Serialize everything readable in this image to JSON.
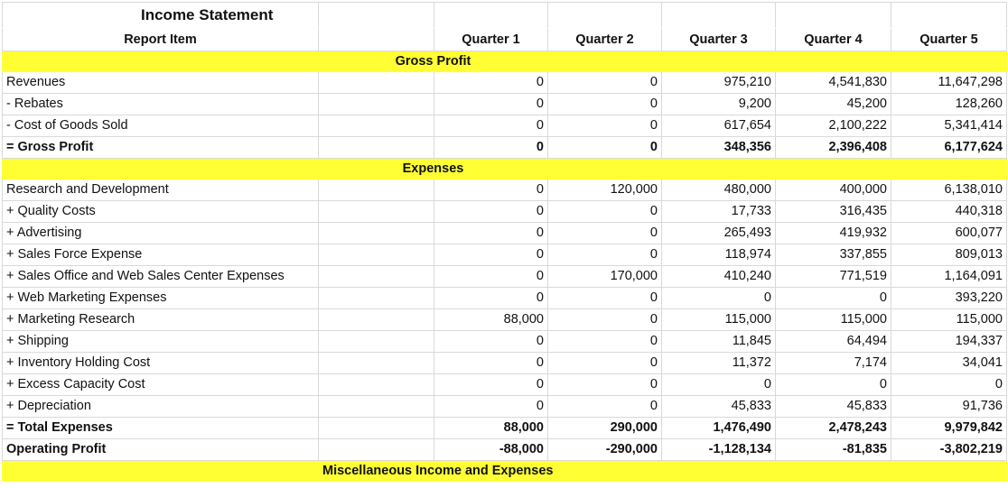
{
  "title": "Income Statement",
  "headers": {
    "report_item": "Report Item",
    "quarters": [
      "Quarter 1",
      "Quarter 2",
      "Quarter 3",
      "Quarter 4",
      "Quarter 5"
    ]
  },
  "sections": {
    "gross_profit": "Gross Profit",
    "expenses": "Expenses",
    "misc": "Miscellaneous Income and Expenses"
  },
  "gross_rows": [
    {
      "label": "Revenues",
      "q": [
        "0",
        "0",
        "975,210",
        "4,541,830",
        "11,647,298"
      ]
    },
    {
      "label": "- Rebates",
      "q": [
        "0",
        "0",
        "9,200",
        "45,200",
        "128,260"
      ]
    },
    {
      "label": "- Cost of Goods Sold",
      "q": [
        "0",
        "0",
        "617,654",
        "2,100,222",
        "5,341,414"
      ]
    },
    {
      "label": "= Gross Profit",
      "q": [
        "0",
        "0",
        "348,356",
        "2,396,408",
        "6,177,624"
      ]
    }
  ],
  "expense_rows": [
    {
      "label": "Research and Development",
      "q": [
        "0",
        "120,000",
        "480,000",
        "400,000",
        "6,138,010"
      ]
    },
    {
      "label": "+ Quality Costs",
      "q": [
        "0",
        "0",
        "17,733",
        "316,435",
        "440,318"
      ]
    },
    {
      "label": "+ Advertising",
      "q": [
        "0",
        "0",
        "265,493",
        "419,932",
        "600,077"
      ]
    },
    {
      "label": "+ Sales Force Expense",
      "q": [
        "0",
        "0",
        "118,974",
        "337,855",
        "809,013"
      ]
    },
    {
      "label": "+ Sales Office and Web Sales Center Expenses",
      "q": [
        "0",
        "170,000",
        "410,240",
        "771,519",
        "1,164,091"
      ]
    },
    {
      "label": "+ Web Marketing Expenses",
      "q": [
        "0",
        "0",
        "0",
        "0",
        "393,220"
      ]
    },
    {
      "label": "+ Marketing Research",
      "q": [
        "88,000",
        "0",
        "115,000",
        "115,000",
        "115,000"
      ]
    },
    {
      "label": "+ Shipping",
      "q": [
        "0",
        "0",
        "11,845",
        "64,494",
        "194,337"
      ]
    },
    {
      "label": "+ Inventory Holding Cost",
      "q": [
        "0",
        "0",
        "11,372",
        "7,174",
        "34,041"
      ]
    },
    {
      "label": "+ Excess Capacity Cost",
      "q": [
        "0",
        "0",
        "0",
        "0",
        "0"
      ]
    },
    {
      "label": "+ Depreciation",
      "q": [
        "0",
        "0",
        "45,833",
        "45,833",
        "91,736"
      ]
    },
    {
      "label": "= Total Expenses",
      "q": [
        "88,000",
        "290,000",
        "1,476,490",
        "2,478,243",
        "9,979,842"
      ]
    },
    {
      "label": "Operating Profit",
      "q": [
        "-88,000",
        "-290,000",
        "-1,128,134",
        "-81,835",
        "-3,802,219"
      ]
    }
  ]
}
